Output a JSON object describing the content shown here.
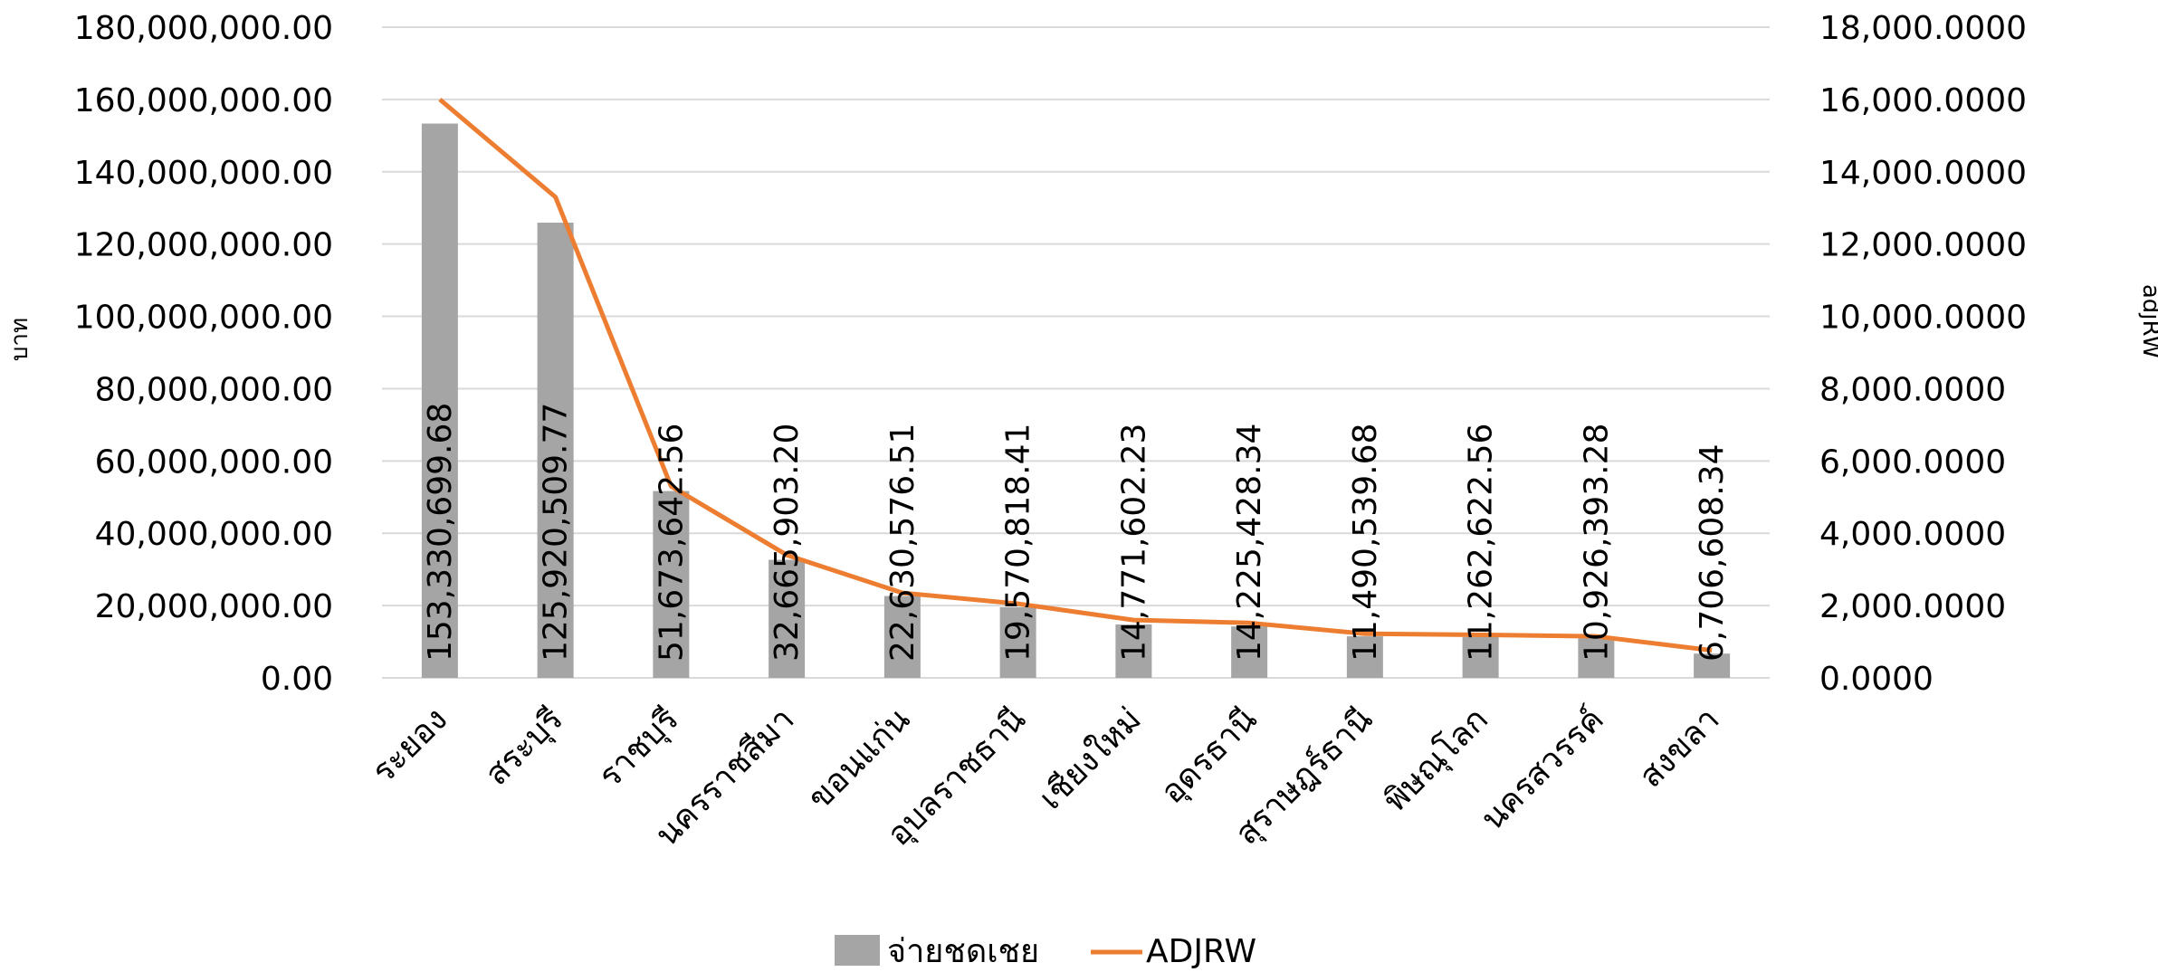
{
  "chart_data": {
    "type": "bar",
    "categories": [
      "ระยอง",
      "สระบุรี",
      "ราชบุรี",
      "นครราชสีมา",
      "ขอนแก่น",
      "อุบลราชธานี",
      "เชียงใหม่",
      "อุดรธานี",
      "สุราษฎร์ธานี",
      "พิษณุโลก",
      "นครสวรรค์",
      "สงขลา"
    ],
    "series": [
      {
        "name": "จ่ายชดเชย",
        "kind": "bar",
        "axis": "left",
        "color": "#A5A5A5",
        "values": [
          153330699.68,
          125920509.77,
          51673642.56,
          32665903.2,
          22630576.51,
          19570818.41,
          14771602.23,
          14225428.34,
          11490539.68,
          11262622.56,
          10926393.28,
          6706608.34
        ],
        "labels": [
          "153,330,699.68",
          "125,920,509.77",
          "51,673,642.56",
          "32,665,903.20",
          "22,630,576.51",
          "19,570,818.41",
          "14,771,602.23",
          "14,225,428.34",
          "11,490,539.68",
          "11,262,622.56",
          "10,926,393.28",
          "6,706,608.34"
        ]
      },
      {
        "name": "ADJRW",
        "kind": "line",
        "axis": "right",
        "color": "#ED7D31",
        "values": [
          16000,
          13300,
          5300,
          3400,
          2350,
          2050,
          1600,
          1520,
          1220,
          1190,
          1150,
          760
        ]
      }
    ],
    "y_left": {
      "label": "บาท",
      "min": 0,
      "max": 180000000,
      "ticks": [
        "0.00",
        "20,000,000.00",
        "40,000,000.00",
        "60,000,000.00",
        "80,000,000.00",
        "100,000,000.00",
        "120,000,000.00",
        "140,000,000.00",
        "160,000,000.00",
        "180,000,000.00"
      ]
    },
    "y_right": {
      "label": "adjRW",
      "min": 0,
      "max": 18000,
      "ticks": [
        "0.0000",
        "2,000.0000",
        "4,000.0000",
        "6,000.0000",
        "8,000.0000",
        "10,000.0000",
        "12,000.0000",
        "14,000.0000",
        "16,000.0000",
        "18,000.0000"
      ]
    },
    "grid": true,
    "legend": "bottom"
  }
}
